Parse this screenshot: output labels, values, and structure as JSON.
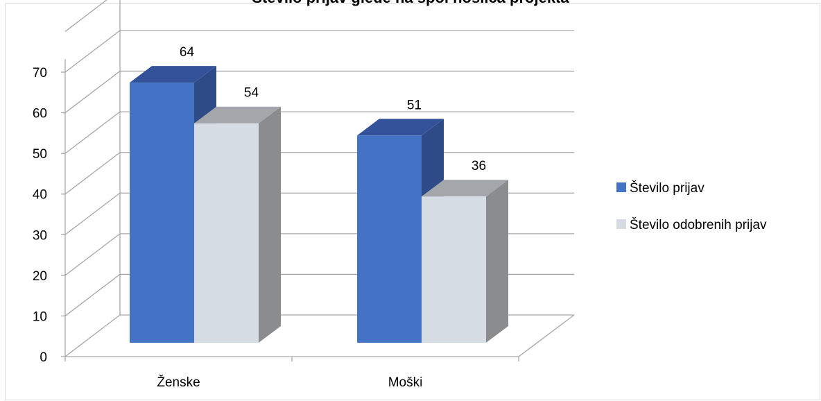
{
  "chart_data": {
    "type": "bar",
    "title": "Število prijav glede na spol nosilca projekta",
    "categories": [
      "Ženske",
      "Moški"
    ],
    "series": [
      {
        "name": "Število prijav",
        "values": [
          64,
          51
        ],
        "color": "#4472c4",
        "side_color": "#2e4b87",
        "top_color": "#34529a"
      },
      {
        "name": "Število odobrenih prijav",
        "values": [
          54,
          36
        ],
        "color": "#d6dce4",
        "side_color": "#8a8c8e",
        "top_color": "#a3a6aa"
      }
    ],
    "y_ticks": [
      "0",
      "10",
      "20",
      "30",
      "40",
      "50",
      "60",
      "70"
    ],
    "ylim": [
      0,
      70
    ],
    "grid": true,
    "legend_position": "right",
    "xlabel": "",
    "ylabel": ""
  }
}
